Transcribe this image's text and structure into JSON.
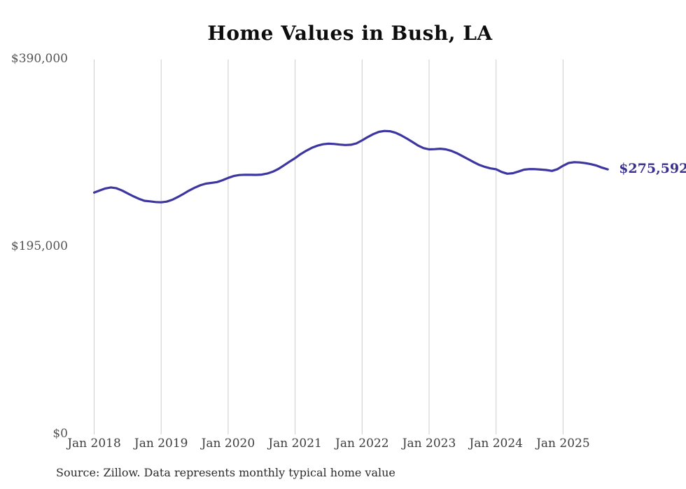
{
  "chart": {
    "title": "Home Values in Bush, LA",
    "end_label": "$275,592",
    "source_note": "Source: Zillow. Data represents monthly typical home value",
    "colors": {
      "line": "#3e36a0",
      "end_label": "#39318b",
      "gridline": "#cccccc",
      "y_axis_text": "#545454",
      "x_axis_text": "#3d3d3d",
      "title_text": "#0d0d0d",
      "source_text": "#2b2b2b",
      "background": "#ffffff"
    }
  },
  "chart_data": {
    "type": "line",
    "title": "Home Values in Bush, LA",
    "xlabel": "",
    "ylabel": "",
    "ylim": [
      0,
      390000
    ],
    "grid": "vertical-only",
    "legend": "none",
    "x_tick_labels": [
      "Jan 2018",
      "Jan 2019",
      "Jan 2020",
      "Jan 2021",
      "Jan 2022",
      "Jan 2023",
      "Jan 2024",
      "Jan 2025"
    ],
    "y_ticks": [
      {
        "label": "$390,000",
        "value": 390000
      },
      {
        "label": "$195,000",
        "value": 195000
      },
      {
        "label": "$0",
        "value": 0
      }
    ],
    "series": [
      {
        "name": "Typical home value (monthly)",
        "start_month": "2018-01",
        "end_month": "2025-09",
        "values": [
          251500,
          253600,
          255700,
          256800,
          255900,
          253600,
          250600,
          247600,
          245000,
          242900,
          242300,
          241600,
          241300,
          242000,
          244000,
          246800,
          250100,
          253500,
          256500,
          259000,
          260700,
          261500,
          262300,
          264300,
          266700,
          268700,
          269700,
          270000,
          269900,
          269800,
          270100,
          271200,
          273200,
          276000,
          279800,
          283600,
          287300,
          291500,
          295000,
          298000,
          300300,
          301700,
          302300,
          302000,
          301400,
          300900,
          301200,
          302700,
          305800,
          309200,
          312300,
          314600,
          315600,
          315300,
          313700,
          311000,
          307700,
          304100,
          300500,
          297700,
          296400,
          296600,
          297100,
          296400,
          294800,
          292300,
          289300,
          286200,
          283100,
          280200,
          278100,
          276600,
          275700,
          272900,
          271100,
          271600,
          273300,
          275300,
          275900,
          275800,
          275400,
          274900,
          274000,
          275800,
          279400,
          282300,
          283100,
          282800,
          282100,
          281000,
          279500,
          277300,
          275592
        ]
      }
    ],
    "final_value": 275592,
    "final_value_label": "$275,592"
  }
}
